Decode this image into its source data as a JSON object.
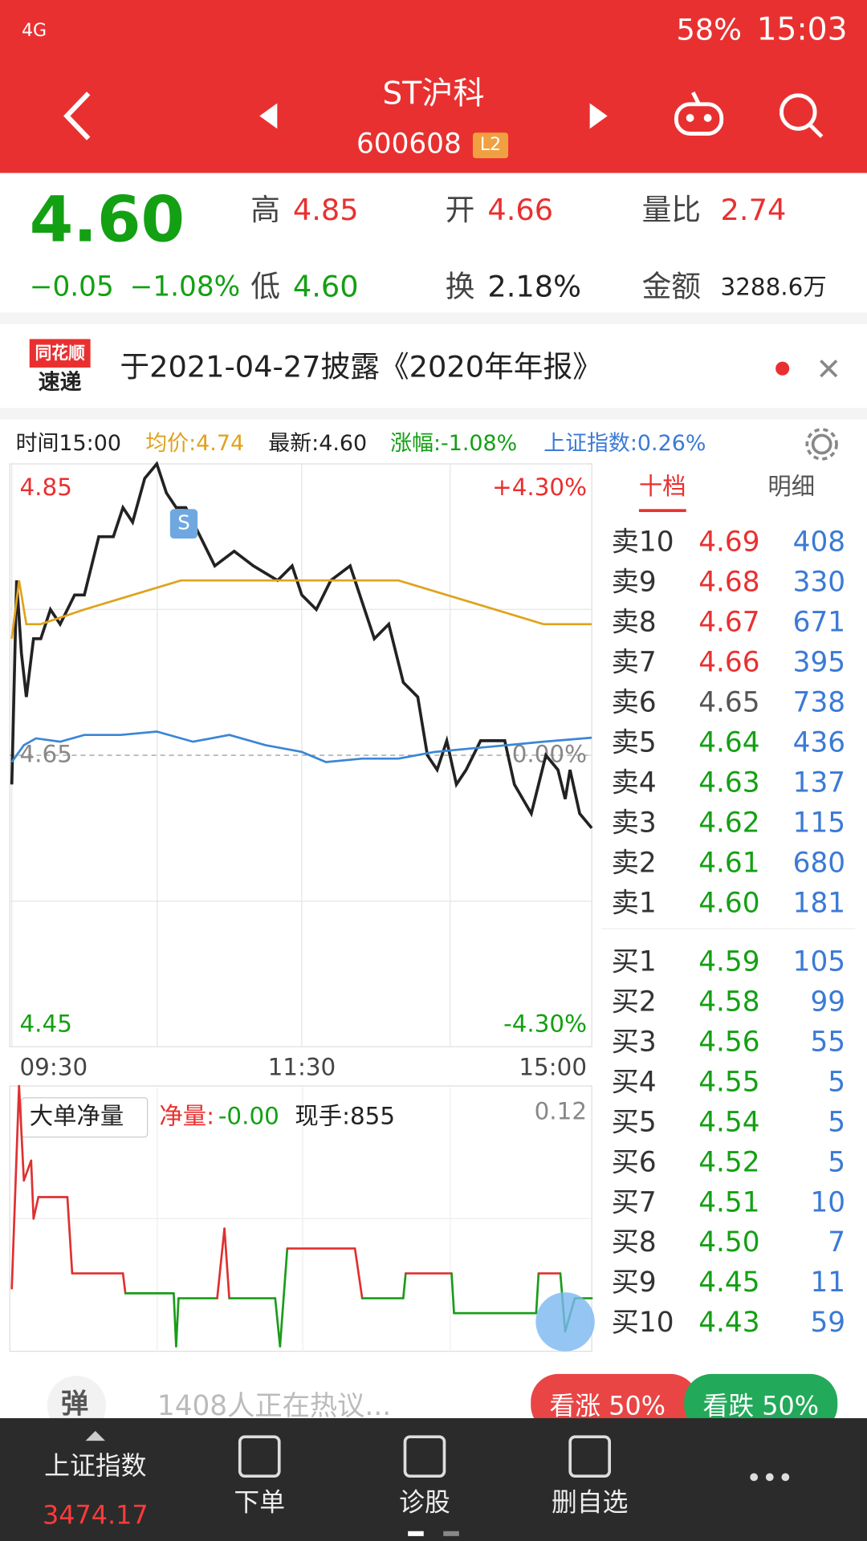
{
  "status_bar": {
    "network": "4G",
    "battery": "58%",
    "time": "15:03"
  },
  "header": {
    "title": "ST沪科",
    "code": "600608",
    "badge": "L2"
  },
  "quote": {
    "price": "4.60",
    "change": "−0.05",
    "change_pct": "−1.08%",
    "high": {
      "label": "高",
      "value": "4.85"
    },
    "low": {
      "label": "低",
      "value": "4.60"
    },
    "open": {
      "label": "开",
      "value": "4.66"
    },
    "turnover": {
      "label": "换",
      "value": "2.18%"
    },
    "volume_ratio": {
      "label": "量比",
      "value": "2.74"
    },
    "amount": {
      "label": "金额",
      "value": "3288.6万"
    }
  },
  "news": {
    "logo_top": "同花顺",
    "logo_bottom": "速递",
    "text": "于2021-04-27披露《2020年年报》"
  },
  "info_bar": {
    "time": "时间15:00",
    "avg": "均价:4.74",
    "latest": "最新:4.60",
    "change": "涨幅:-1.08%",
    "index": "上证指数:0.26%"
  },
  "tabs": [
    "十档",
    "明细"
  ],
  "order_book": {
    "sell": [
      [
        "卖10",
        "4.69",
        "408"
      ],
      [
        "卖9",
        "4.68",
        "330"
      ],
      [
        "卖8",
        "4.67",
        "671"
      ],
      [
        "卖7",
        "4.66",
        "395"
      ],
      [
        "卖6",
        "4.65",
        "738"
      ],
      [
        "卖5",
        "4.64",
        "436"
      ],
      [
        "卖4",
        "4.63",
        "137"
      ],
      [
        "卖3",
        "4.62",
        "115"
      ],
      [
        "卖2",
        "4.61",
        "680"
      ],
      [
        "卖1",
        "4.60",
        "181"
      ]
    ],
    "buy": [
      [
        "买1",
        "4.59",
        "105"
      ],
      [
        "买2",
        "4.58",
        "99"
      ],
      [
        "买3",
        "4.56",
        "55"
      ],
      [
        "买4",
        "4.55",
        "5"
      ],
      [
        "买5",
        "4.54",
        "5"
      ],
      [
        "买6",
        "4.52",
        "5"
      ],
      [
        "买7",
        "4.51",
        "10"
      ],
      [
        "买8",
        "4.50",
        "7"
      ],
      [
        "买9",
        "4.45",
        "11"
      ],
      [
        "买10",
        "4.43",
        "59"
      ]
    ]
  },
  "price_chart": {
    "type": "line",
    "ylim": [
      4.45,
      4.85
    ],
    "yticks": [
      4.45,
      4.65,
      4.85
    ],
    "y2lim": [
      -4.3,
      4.3
    ],
    "y2ticks": [
      {
        "value": -4.3,
        "label": "-4.30%"
      },
      {
        "value": 0,
        "label": "0.00%"
      },
      {
        "value": 4.3,
        "label": "+4.30%"
      }
    ],
    "xlim": [
      0,
      240
    ],
    "xticks": [
      {
        "value": 0,
        "label": "09:30"
      },
      {
        "value": 120,
        "label": "11:30"
      },
      {
        "value": 240,
        "label": "15:00"
      }
    ],
    "signal_marker": "S",
    "series": [
      {
        "color": "#222222",
        "x": [
          0,
          2,
          4,
          6,
          9,
          12,
          16,
          20,
          26,
          30,
          36,
          42,
          46,
          50,
          55,
          60,
          64,
          68,
          72,
          78,
          84,
          92,
          100,
          110,
          116,
          120,
          126,
          132,
          140,
          150,
          156,
          162,
          168,
          172,
          176,
          180,
          184,
          188,
          194,
          204,
          208,
          215,
          221,
          226,
          229,
          231,
          235,
          240
        ],
        "values": [
          4.63,
          4.77,
          4.72,
          4.69,
          4.73,
          4.73,
          4.75,
          4.74,
          4.76,
          4.76,
          4.8,
          4.8,
          4.82,
          4.81,
          4.84,
          4.85,
          4.83,
          4.82,
          4.82,
          4.8,
          4.78,
          4.79,
          4.78,
          4.77,
          4.78,
          4.76,
          4.75,
          4.77,
          4.78,
          4.73,
          4.74,
          4.7,
          4.69,
          4.65,
          4.64,
          4.66,
          4.63,
          4.64,
          4.66,
          4.66,
          4.63,
          4.61,
          4.65,
          4.64,
          4.62,
          4.64,
          4.61,
          4.6
        ]
      },
      {
        "color": "#e0a21c",
        "x": [
          0,
          3,
          6,
          12,
          30,
          50,
          70,
          100,
          130,
          160,
          180,
          200,
          220,
          240
        ],
        "values": [
          4.73,
          4.77,
          4.74,
          4.74,
          4.75,
          4.76,
          4.77,
          4.77,
          4.77,
          4.77,
          4.76,
          4.75,
          4.74,
          4.74
        ]
      },
      {
        "color": "#3a86d6",
        "axis": "y2",
        "x": [
          0,
          5,
          10,
          20,
          30,
          45,
          60,
          75,
          90,
          105,
          120,
          130,
          145,
          160,
          175,
          190,
          205,
          220,
          240
        ],
        "values": [
          -0.1,
          0.15,
          0.25,
          0.2,
          0.3,
          0.3,
          0.35,
          0.2,
          0.3,
          0.15,
          0.05,
          -0.1,
          -0.05,
          -0.05,
          0.05,
          0.1,
          0.15,
          0.2,
          0.26
        ]
      }
    ]
  },
  "big_order_chart": {
    "type": "line",
    "label": "大单净量",
    "net_label": "净量:",
    "net_value": "-0.00",
    "current": "现手:855",
    "ylim": [
      -0.04,
      0.12
    ],
    "yticks": [
      0.12
    ],
    "xlim": [
      0,
      240
    ],
    "up_color": "#e03030",
    "down_color": "#1a9c1a",
    "x": [
      0,
      3,
      5,
      8,
      9,
      11,
      23,
      25,
      46,
      47,
      67,
      68,
      69,
      85,
      88,
      90,
      109,
      111,
      114,
      142,
      145,
      162,
      163,
      182,
      183,
      217,
      218,
      227,
      229,
      233,
      240
    ],
    "values": [
      -0.002,
      0.12,
      0.063,
      0.075,
      0.04,
      0.053,
      0.053,
      0.007,
      0.007,
      -0.005,
      -0.005,
      -0.037,
      -0.008,
      -0.008,
      0.034,
      -0.008,
      -0.008,
      -0.037,
      0.022,
      0.022,
      -0.008,
      -0.008,
      0.007,
      0.007,
      -0.017,
      -0.017,
      0.007,
      0.007,
      -0.028,
      -0.008,
      -0.008
    ]
  },
  "sentiment": {
    "badge": "弹",
    "text": "1408人正在热议...",
    "bull": "看涨 50%",
    "bear": "看跌 50%"
  },
  "nav": [
    {
      "label": "上证指数",
      "value": "3474.17"
    },
    {
      "label": "下单"
    },
    {
      "label": "诊股"
    },
    {
      "label": "删自选"
    }
  ]
}
